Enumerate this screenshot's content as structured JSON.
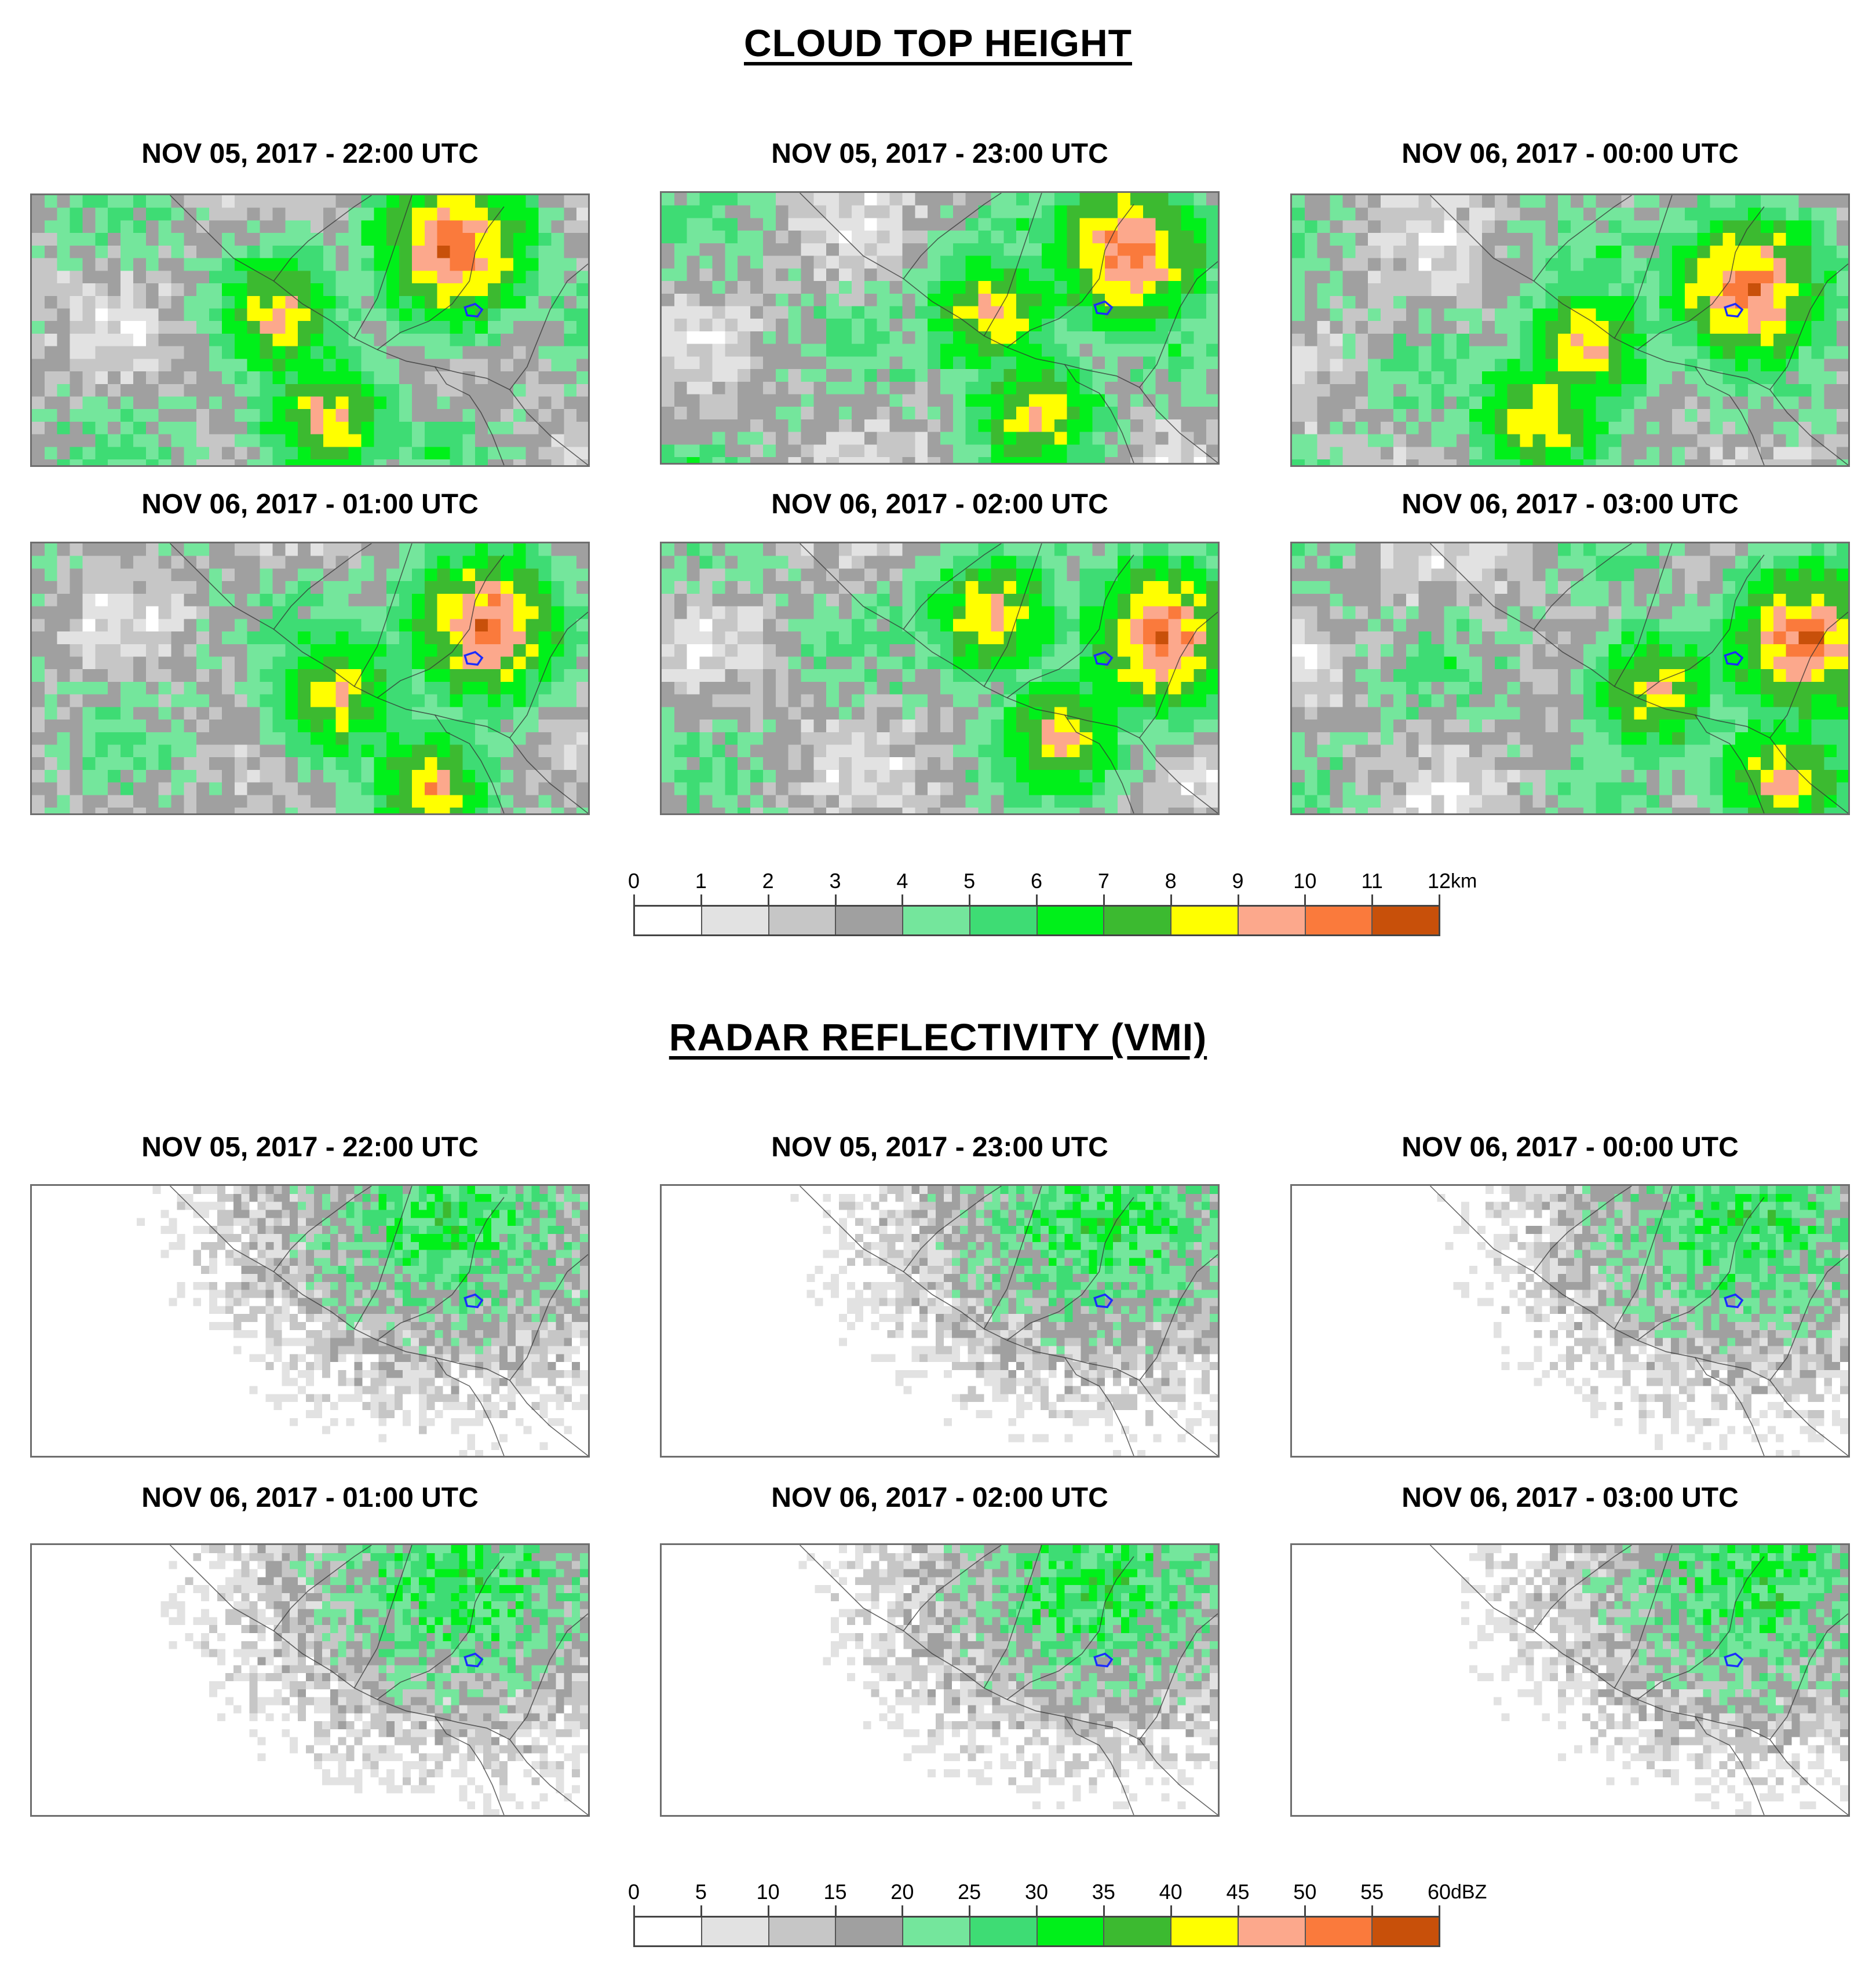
{
  "sections": [
    {
      "title": "CLOUD TOP HEIGHT",
      "panels": [
        "NOV 05, 2017 - 22:00 UTC",
        "NOV 05, 2017 - 23:00 UTC",
        "NOV 06, 2017 - 00:00 UTC",
        "NOV 06, 2017 - 01:00 UTC",
        "NOV 06, 2017 - 02:00 UTC",
        "NOV 06, 2017 - 03:00 UTC"
      ],
      "colorbar": {
        "ticks": [
          "0",
          "1",
          "2",
          "3",
          "4",
          "5",
          "6",
          "7",
          "8",
          "9",
          "10",
          "11",
          "12"
        ],
        "unit": "km",
        "colors": [
          "#ffffff",
          "#e2e2e2",
          "#c6c6c6",
          "#a0a0a0",
          "#74e69c",
          "#3edc74",
          "#00f01a",
          "#3cba30",
          "#ffff00",
          "#fca88c",
          "#fa7a3c",
          "#c8500a"
        ]
      }
    },
    {
      "title": "RADAR REFLECTIVITY (VMI)",
      "panels": [
        "NOV 05, 2017 - 22:00 UTC",
        "NOV 05, 2017 - 23:00 UTC",
        "NOV 06, 2017 - 00:00 UTC",
        "NOV 06, 2017 - 01:00 UTC",
        "NOV 06, 2017 - 02:00 UTC",
        "NOV 06, 2017 - 03:00 UTC"
      ],
      "colorbar": {
        "ticks": [
          "0",
          "5",
          "10",
          "15",
          "20",
          "25",
          "30",
          "35",
          "40",
          "45",
          "50",
          "55",
          "60"
        ],
        "unit": "dBZ",
        "colors": [
          "#ffffff",
          "#e2e2e2",
          "#c6c6c6",
          "#a0a0a0",
          "#74e69c",
          "#3edc74",
          "#00f01a",
          "#3cba30",
          "#ffff00",
          "#fca88c",
          "#fa7a3c",
          "#c8500a"
        ]
      }
    }
  ]
}
